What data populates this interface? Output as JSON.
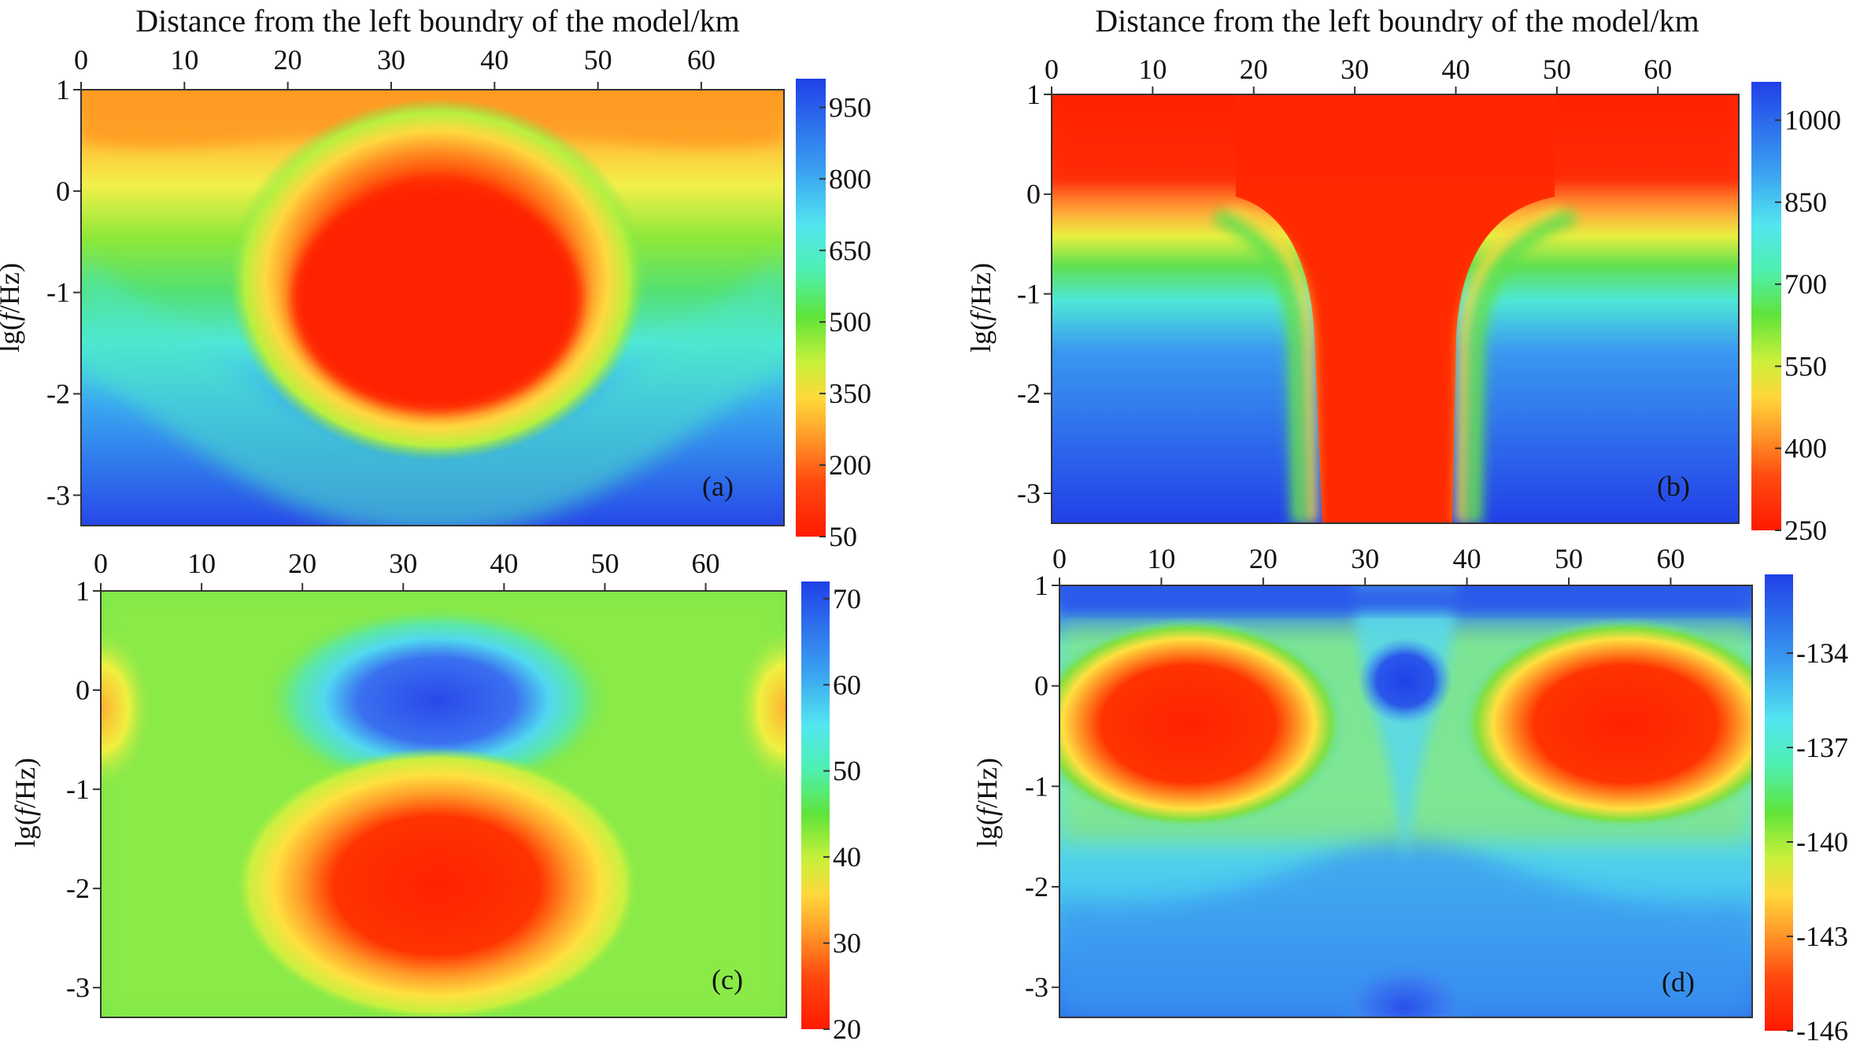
{
  "chart_data": [
    {
      "type": "heatmap",
      "panel": "(a)",
      "title": "Distance from the left boundry of the model/km",
      "xlabel": "Distance from the left boundry of the model/km",
      "ylabel": "lg(f/Hz)",
      "x_ticks": [
        "0",
        "10",
        "20",
        "30",
        "40",
        "50",
        "60"
      ],
      "xlim": [
        0,
        68
      ],
      "y_ticks": [
        "1",
        "0",
        "-1",
        "-2",
        "-3"
      ],
      "ylim": [
        -3.3,
        1
      ],
      "colorbar_ticks": [
        "950",
        "800",
        "650",
        "500",
        "350",
        "200",
        "50"
      ],
      "colorbar_range": [
        50,
        1010
      ],
      "description_values": {
        "anomaly_center_x": 34,
        "anomaly_center_y": -1.1,
        "anomaly_min": 50,
        "background_max": 1000
      }
    },
    {
      "type": "heatmap",
      "panel": "(b)",
      "title": "Distance from the left boundry of the model/km",
      "xlabel": "Distance from the left boundry of the model/km",
      "ylabel": "lg(f/Hz)",
      "x_ticks": [
        "0",
        "10",
        "20",
        "30",
        "40",
        "50",
        "60"
      ],
      "xlim": [
        0,
        68
      ],
      "y_ticks": [
        "1",
        "0",
        "-1",
        "-2",
        "-3"
      ],
      "ylim": [
        -3.3,
        1
      ],
      "colorbar_ticks": [
        "1000",
        "850",
        "700",
        "550",
        "400",
        "250"
      ],
      "colorbar_range": [
        250,
        1070
      ],
      "description_values": {
        "low_band_x": [
          26,
          41
        ],
        "background_max": 1050
      }
    },
    {
      "type": "heatmap",
      "panel": "(c)",
      "xlabel": "",
      "ylabel": "lg(f/Hz)",
      "x_ticks": [
        "0",
        "10",
        "20",
        "30",
        "40",
        "50",
        "60"
      ],
      "xlim": [
        0,
        68
      ],
      "y_ticks": [
        "1",
        "0",
        "-1",
        "-2",
        "-3"
      ],
      "ylim": [
        -3.3,
        1
      ],
      "colorbar_ticks": [
        "70",
        "60",
        "50",
        "40",
        "30",
        "20"
      ],
      "colorbar_range": [
        20,
        72
      ],
      "description_values": {
        "high_lobe_y": -0.2,
        "low_lobe_y": -2.0,
        "background": 45
      }
    },
    {
      "type": "heatmap",
      "panel": "(d)",
      "xlabel": "",
      "ylabel": "lg(f/Hz)",
      "x_ticks": [
        "0",
        "10",
        "20",
        "30",
        "40",
        "50",
        "60"
      ],
      "xlim": [
        0,
        68
      ],
      "y_ticks": [
        "1",
        "0",
        "-1",
        "-2",
        "-3"
      ],
      "ylim": [
        -3.3,
        1
      ],
      "colorbar_ticks": [
        "-134",
        "-137",
        "-140",
        "-143",
        "-146"
      ],
      "colorbar_range": [
        -146,
        -131.5
      ],
      "description_values": {
        "low_lobes_x": [
          14,
          56
        ],
        "low_lobes_y": -0.4
      }
    }
  ]
}
